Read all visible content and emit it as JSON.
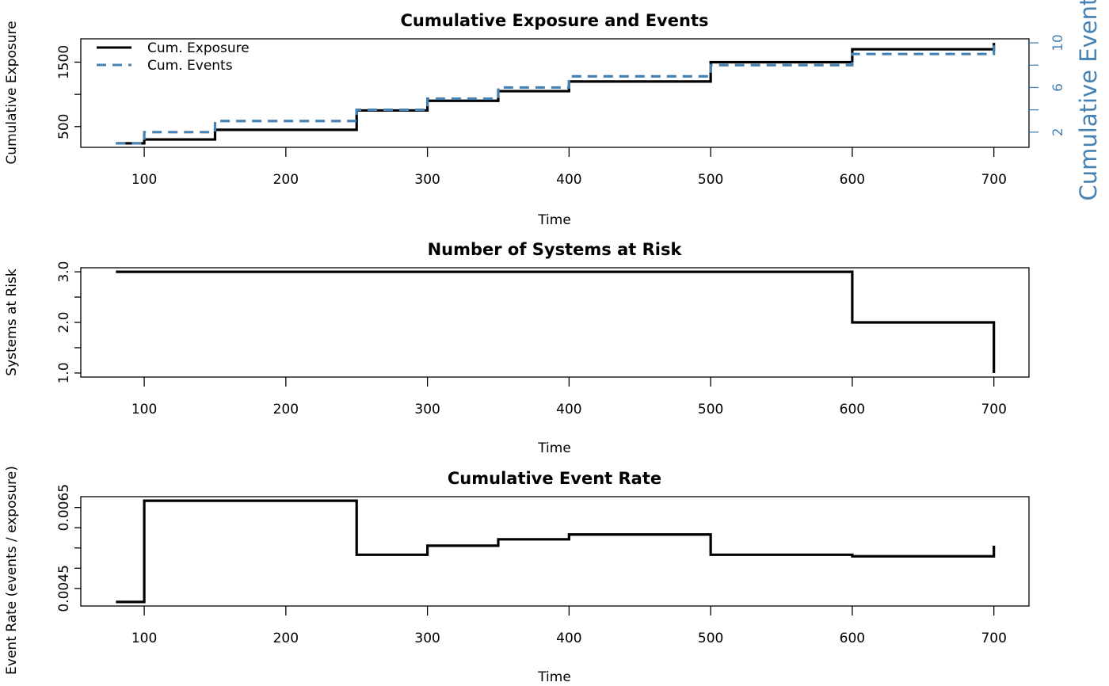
{
  "chart_data": [
    {
      "type": "line",
      "title": "Cumulative Exposure and Events",
      "xlabel": "Time",
      "ylabel": "Cumulative Exposure",
      "ylabel_right": "Cumulative Events",
      "right_axis_color": "#4682B4",
      "step": true,
      "x": [
        80,
        100,
        150,
        250,
        300,
        350,
        400,
        500,
        600,
        700
      ],
      "xlim": [
        55.2,
        724.8
      ],
      "xticks": [
        100,
        200,
        300,
        400,
        500,
        600,
        700
      ],
      "ylim": [
        177.6,
        1862.4
      ],
      "yticks": [
        500,
        1000,
        1500
      ],
      "ytick_labels": [
        "500",
        "",
        "1500"
      ],
      "ylim_right": [
        0.64,
        10.36
      ],
      "yticks_right": [
        2,
        4,
        6,
        8,
        10
      ],
      "ytick_labels_right": [
        "2",
        "",
        "6",
        "",
        "10"
      ],
      "legend": "top-left",
      "series": [
        {
          "name": "Cum. Exposure",
          "axis": "left",
          "color": "#000000",
          "style": "solid",
          "values": [
            240,
            300,
            450,
            750,
            900,
            1050,
            1200,
            1500,
            1700,
            1800
          ]
        },
        {
          "name": "Cum. Events",
          "axis": "right",
          "color": "#4682B4",
          "style": "dashed",
          "values": [
            1,
            2,
            3,
            4,
            5,
            6,
            7,
            8,
            9,
            10
          ]
        }
      ]
    },
    {
      "type": "line",
      "title": "Number of Systems at Risk",
      "xlabel": "Time",
      "ylabel": "Systems at Risk",
      "step": true,
      "x": [
        80,
        100,
        150,
        250,
        300,
        350,
        400,
        500,
        600,
        700
      ],
      "xlim": [
        55.2,
        724.8
      ],
      "xticks": [
        100,
        200,
        300,
        400,
        500,
        600,
        700
      ],
      "ylim": [
        0.92,
        3.08
      ],
      "yticks": [
        1.0,
        1.5,
        2.0,
        2.5,
        3.0
      ],
      "ytick_labels": [
        "1.0",
        "",
        "2.0",
        "",
        "3.0"
      ],
      "series": [
        {
          "color": "#000000",
          "values": [
            3,
            3,
            3,
            3,
            3,
            3,
            3,
            3,
            2,
            1
          ]
        }
      ]
    },
    {
      "type": "line",
      "title": "Cumulative Event Rate",
      "xlabel": "Time",
      "ylabel": "Event Rate (events / exposure)",
      "step": true,
      "x": [
        80,
        100,
        150,
        250,
        300,
        350,
        400,
        500,
        600,
        700
      ],
      "xlim": [
        55.2,
        724.8
      ],
      "xticks": [
        100,
        200,
        300,
        400,
        500,
        600,
        700
      ],
      "ylim": [
        0.004067,
        0.006767
      ],
      "yticks": [
        0.0045,
        0.005,
        0.0055,
        0.006,
        0.0065
      ],
      "ytick_labels": [
        "0.0045",
        "",
        "",
        "",
        "0.0065"
      ],
      "series": [
        {
          "color": "#000000",
          "values": [
            0.004167,
            0.006667,
            0.006667,
            0.005333,
            0.005556,
            0.005714,
            0.005833,
            0.005333,
            0.005294,
            0.005556
          ]
        }
      ]
    }
  ]
}
